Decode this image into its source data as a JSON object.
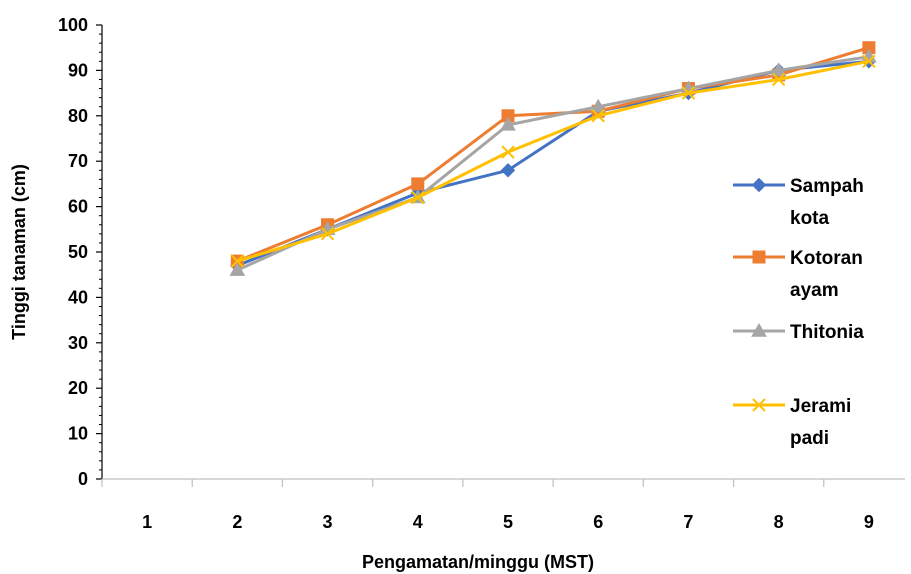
{
  "chart_data": {
    "type": "line",
    "title": "",
    "xlabel": "Pengamatan/minggu (MST)",
    "ylabel": "Tinggi tanaman (cm)",
    "categories": [
      "1",
      "2",
      "3",
      "4",
      "5",
      "6",
      "7",
      "8",
      "9"
    ],
    "ylim": [
      0,
      100
    ],
    "yticks": [
      "0",
      "10",
      "20",
      "30",
      "40",
      "50",
      "60",
      "70",
      "80",
      "90",
      "100"
    ],
    "grid": false,
    "legend_position": "right",
    "series": [
      {
        "name": "Sampah kota",
        "name_lines": [
          "Sampah",
          "kota"
        ],
        "color": "#4472C4",
        "marker": "diamond",
        "values": [
          null,
          47,
          55,
          63,
          68,
          81,
          85,
          90,
          92
        ]
      },
      {
        "name": "Kotoran ayam",
        "name_lines": [
          "Kotoran",
          "ayam"
        ],
        "color": "#ED7D31",
        "marker": "square",
        "values": [
          null,
          48,
          56,
          65,
          80,
          81,
          86,
          89,
          95
        ]
      },
      {
        "name": "Thitonia",
        "name_lines": [
          "Thitonia"
        ],
        "color": "#A5A5A5",
        "marker": "triangle",
        "values": [
          null,
          46,
          55,
          62,
          78,
          82,
          86,
          90,
          93
        ]
      },
      {
        "name": "Jerami padi",
        "name_lines": [
          "Jerami",
          "padi"
        ],
        "color": "#FFC000",
        "marker": "x",
        "values": [
          null,
          48,
          54,
          62,
          72,
          80,
          85,
          88,
          92
        ]
      }
    ]
  }
}
